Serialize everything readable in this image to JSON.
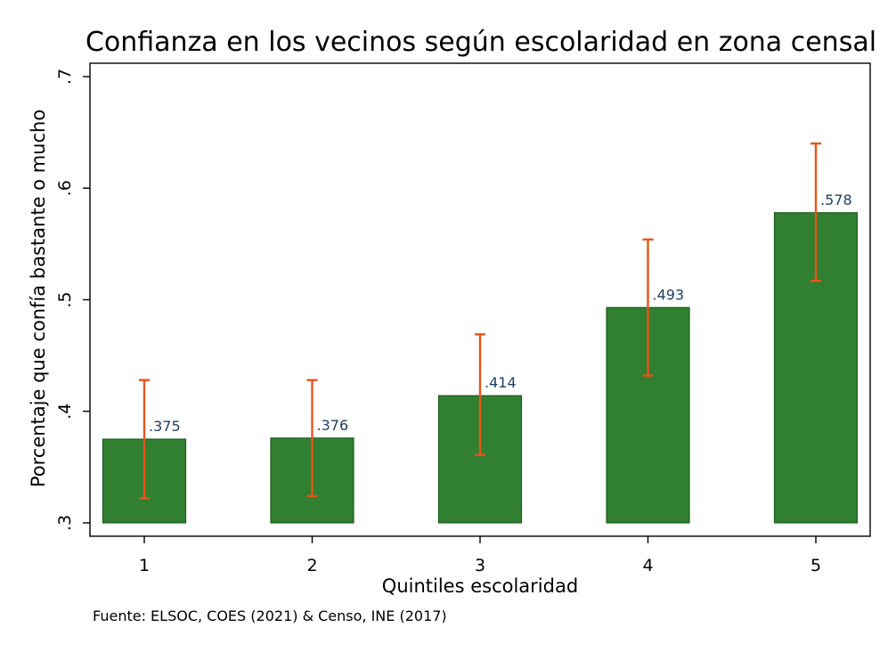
{
  "chart_data": {
    "type": "bar",
    "title": "Confianza en los vecinos según escolaridad en zona censal",
    "xlabel": "Quintiles escolaridad",
    "ylabel": "Porcentaje que confía bastante o mucho",
    "categories": [
      "1",
      "2",
      "3",
      "4",
      "5"
    ],
    "values": [
      0.375,
      0.376,
      0.414,
      0.493,
      0.578
    ],
    "value_labels": [
      ".375",
      ".376",
      ".414",
      ".493",
      ".578"
    ],
    "ci_lower": [
      0.322,
      0.324,
      0.361,
      0.432,
      0.517
    ],
    "ci_upper": [
      0.428,
      0.428,
      0.469,
      0.554,
      0.64
    ],
    "ylim": [
      0.3,
      0.7
    ],
    "yticks": [
      0.3,
      0.4,
      0.5,
      0.6,
      0.7
    ],
    "ytick_labels": [
      ".3",
      ".4",
      ".5",
      ".6",
      ".7"
    ],
    "grid": false,
    "legend": "none",
    "source_note": "Fuente: ELSOC, COES (2021) & Censo, INE (2017)",
    "colors": {
      "bar_fill": "#317f31",
      "bar_stroke": "#1d5e1d",
      "error_bar": "#e8541a",
      "value_label": "#1f3f66",
      "axis": "#000000"
    }
  }
}
